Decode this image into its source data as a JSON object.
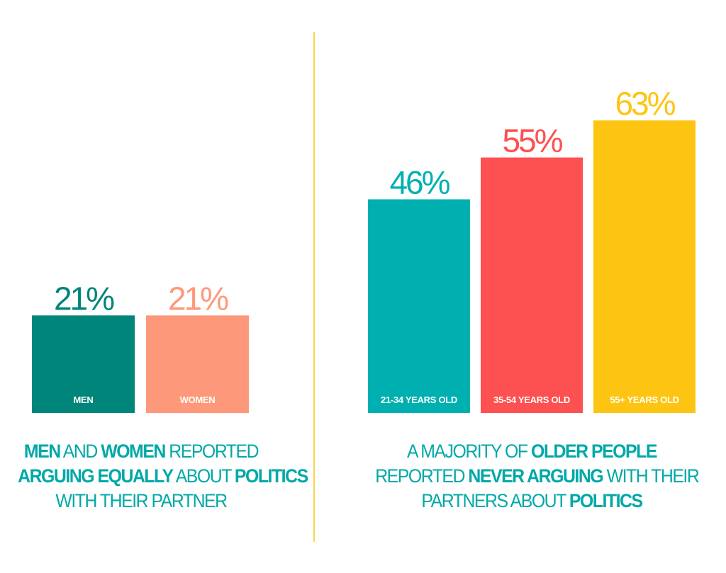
{
  "colors": {
    "men": "#00857a",
    "women": "#fd997a",
    "age_21_34": "#00b0b0",
    "age_35_54": "#fd5050",
    "age_55_plus": "#fdc512",
    "divider": "#fdd34a",
    "caption": "#00a8a8"
  },
  "chart_data": [
    {
      "type": "bar",
      "categories": [
        "MEN",
        "WOMEN"
      ],
      "values": [
        21,
        21
      ],
      "value_labels": [
        "21%",
        "21%"
      ],
      "ylim": [
        0,
        70
      ],
      "grid": false,
      "caption": [
        [
          {
            "text": "MEN",
            "bold": true
          },
          {
            "text": " AND ",
            "bold": false
          },
          {
            "text": "WOMEN",
            "bold": true
          },
          {
            "text": " REPORTED",
            "bold": false
          }
        ],
        [
          {
            "text": "ARGUING EQUALLY",
            "bold": true
          },
          {
            "text": " ABOUT ",
            "bold": false
          },
          {
            "text": "POLITICS",
            "bold": true
          }
        ],
        [
          {
            "text": "WITH THEIR PARTNER",
            "bold": false
          }
        ]
      ]
    },
    {
      "type": "bar",
      "categories": [
        "21-34 YEARS OLD",
        "35-54 YEARS OLD",
        "55+ YEARS OLD"
      ],
      "values": [
        46,
        55,
        63
      ],
      "value_labels": [
        "46%",
        "55%",
        "63%"
      ],
      "ylim": [
        0,
        70
      ],
      "grid": false,
      "caption": [
        [
          {
            "text": "A MAJORITY OF ",
            "bold": false
          },
          {
            "text": "OLDER PEOPLE",
            "bold": true
          }
        ],
        [
          {
            "text": "REPORTED ",
            "bold": false
          },
          {
            "text": "NEVER ARGUING",
            "bold": true
          },
          {
            "text": " WITH THEIR",
            "bold": false
          }
        ],
        [
          {
            "text": "PARTNERS ABOUT ",
            "bold": false
          },
          {
            "text": "POLITICS",
            "bold": true
          }
        ]
      ]
    }
  ]
}
